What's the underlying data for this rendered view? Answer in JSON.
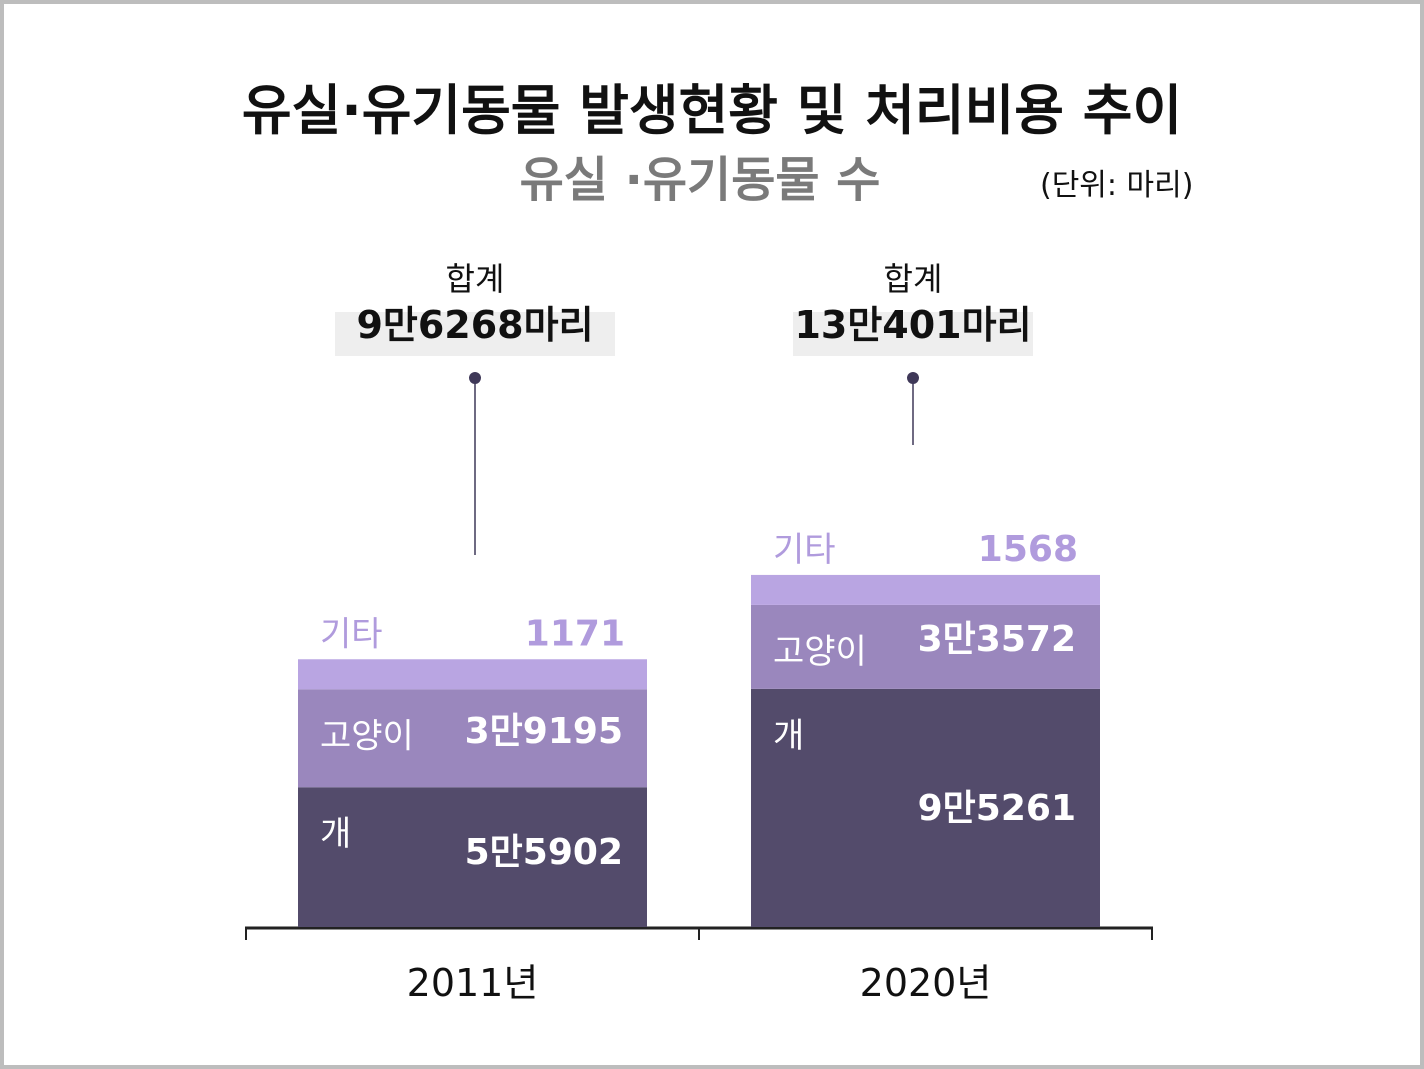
{
  "title": "유실·유기동물 발생현황 및 처리비용 추이",
  "subtitle": "유실 ·유기동물 수",
  "unit": "(단위: 마리)",
  "colors": {
    "dog": "#534b6b",
    "cat": "#9a87bd",
    "other": "#b9a5e2",
    "other_label": "#b09bdd",
    "cat_label": "#ffffff",
    "dog_label": "#ffffff",
    "axis": "#222222",
    "total_box": "#eeeeee"
  },
  "chart_data": {
    "type": "bar",
    "stacked": true,
    "categories": [
      "2011년",
      "2020년"
    ],
    "series": [
      {
        "name": "개",
        "values": [
          55902,
          95261
        ],
        "labels": [
          "5만5902",
          "9만5261"
        ]
      },
      {
        "name": "고양이",
        "values": [
          39195,
          33572
        ],
        "labels": [
          "3만9195",
          "3만3572"
        ]
      },
      {
        "name": "기타",
        "values": [
          1171,
          1568
        ],
        "labels": [
          "1171",
          "1568"
        ]
      }
    ],
    "totals": [
      {
        "caption": "합계",
        "label": "9만6268마리"
      },
      {
        "caption": "합계",
        "label": "13만401마리"
      }
    ],
    "ylim": [
      0,
      150000
    ],
    "grid": false,
    "legend": "inline"
  }
}
